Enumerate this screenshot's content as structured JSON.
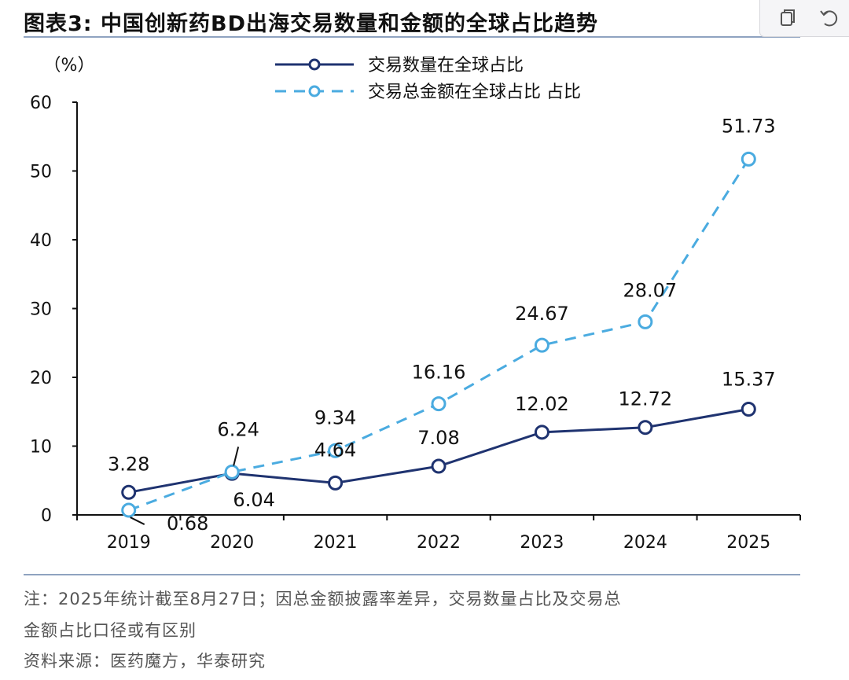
{
  "header": {
    "title": "图表3:  中国创新药BD出海交易数量和金额的全球占比趋势"
  },
  "toolbar": {
    "icons": [
      "copy-icon",
      "undo-icon"
    ]
  },
  "chart_data": {
    "type": "line",
    "y_unit_label": "（%）",
    "categories": [
      "2019",
      "2020",
      "2021",
      "2022",
      "2023",
      "2024",
      "2025"
    ],
    "ylim": [
      0,
      60
    ],
    "yticks": [
      "0",
      "10",
      "20",
      "30",
      "40",
      "50",
      "60"
    ],
    "grid": false,
    "legend_position": "top-center",
    "series": [
      {
        "name": "交易数量在全球占比",
        "style": "solid",
        "color": "#1f3370",
        "values": [
          3.28,
          6.04,
          4.64,
          7.08,
          12.02,
          12.72,
          15.37
        ],
        "labels": [
          "3.28",
          "6.04",
          "4.64",
          "7.08",
          "12.02",
          "12.72",
          "15.37"
        ]
      },
      {
        "name": "交易总金额在全球占比 占比",
        "style": "dashed",
        "color": "#4aabe0",
        "values": [
          0.68,
          6.24,
          9.34,
          16.16,
          24.67,
          28.07,
          51.73
        ],
        "labels": [
          "0.68",
          "6.24",
          "9.34",
          "16.16",
          "24.67",
          "28.07",
          "51.73"
        ]
      }
    ]
  },
  "footer": {
    "note_line1": "注：2025年统计截至8月27日；因总金额披露率差异，交易数量占比及交易总",
    "note_line2": "金额占比口径或有区别",
    "source": "资料来源：医药魔方，华泰研究"
  }
}
